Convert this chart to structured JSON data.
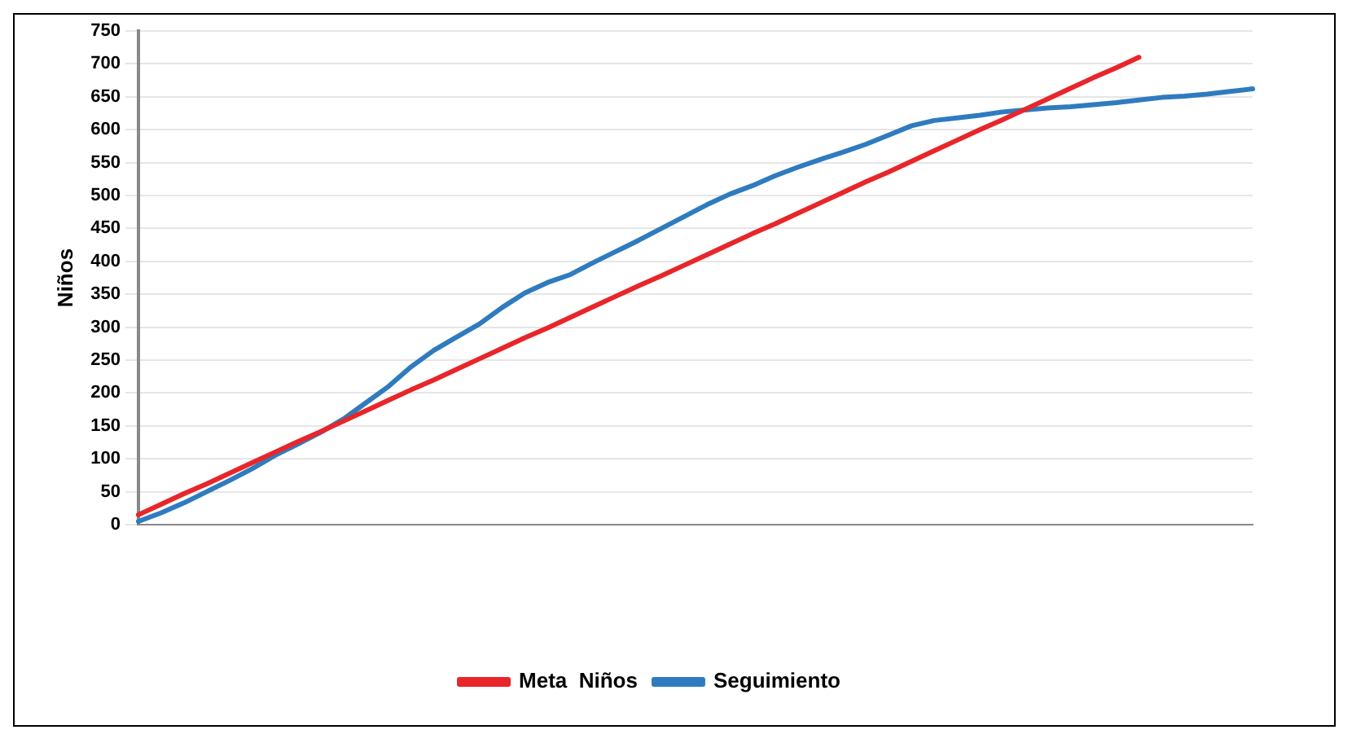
{
  "chart_data": {
    "type": "line",
    "ylabel": "Niños",
    "categories": [
      null,
      null,
      null,
      null,
      null,
      null,
      null,
      null,
      null,
      null,
      null,
      null,
      null,
      null,
      null,
      null,
      null,
      null,
      null,
      null,
      null,
      null,
      null,
      null,
      null,
      null,
      null,
      null,
      null,
      null,
      null,
      null,
      null,
      null,
      null,
      null,
      null,
      null,
      null,
      null,
      null,
      null,
      null,
      null,
      null,
      null,
      null,
      null,
      null,
      null
    ],
    "series": [
      {
        "name": "Meta  Niños",
        "color": "#e8262a",
        "values": [
          15,
          31,
          47,
          62,
          78,
          94,
          110,
          126,
          141,
          157,
          173,
          189,
          205,
          220,
          236,
          252,
          268,
          284,
          299,
          315,
          331,
          347,
          363,
          378,
          394,
          410,
          426,
          442,
          457,
          473,
          489,
          505,
          521,
          536,
          552,
          568,
          584,
          600,
          615,
          631,
          647,
          663,
          679,
          694,
          710,
          null,
          null,
          null,
          null,
          null
        ]
      },
      {
        "name": "Seguimiento",
        "color": "#2f7bbf",
        "values": [
          5,
          18,
          33,
          50,
          67,
          85,
          105,
          122,
          140,
          160,
          185,
          210,
          240,
          265,
          285,
          305,
          330,
          352,
          368,
          380,
          398,
          415,
          432,
          450,
          468,
          486,
          502,
          515,
          530,
          543,
          555,
          566,
          578,
          592,
          606,
          614,
          618,
          622,
          627,
          630,
          633,
          635,
          638,
          641,
          645,
          649,
          651,
          654,
          658,
          662
        ]
      }
    ],
    "ylim": [
      0,
      750
    ],
    "yticks": [
      0,
      50,
      100,
      150,
      200,
      250,
      300,
      350,
      400,
      450,
      500,
      550,
      600,
      650,
      700,
      750
    ],
    "grid": "y",
    "legend": "bottom",
    "marker": "none",
    "line_style": "solid"
  }
}
